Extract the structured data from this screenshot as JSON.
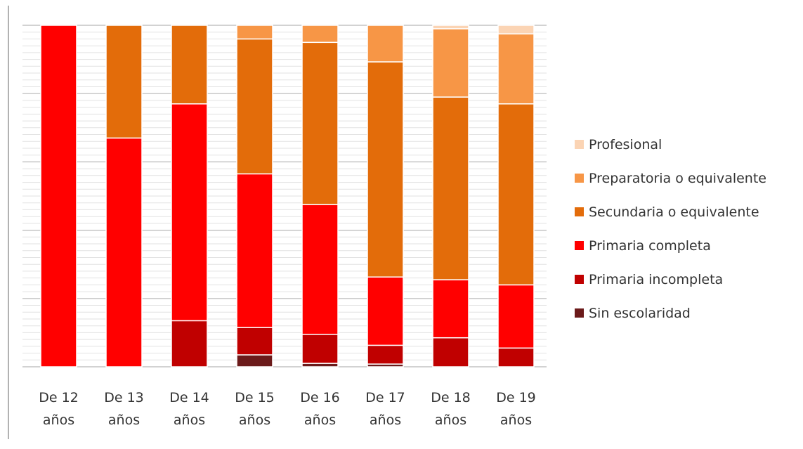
{
  "chart_data": {
    "type": "bar",
    "stacked": true,
    "normalized": true,
    "categories": [
      [
        "De 12",
        "años"
      ],
      [
        "De 13",
        "años"
      ],
      [
        "De 14",
        "años"
      ],
      [
        "De 15",
        "años"
      ],
      [
        "De 16",
        "años"
      ],
      [
        "De 17",
        "años"
      ],
      [
        "De 18",
        "años"
      ],
      [
        "De 19",
        "años"
      ]
    ],
    "series": [
      {
        "name": "Sin escolaridad",
        "color": "#6b1a1a",
        "values": [
          0,
          0,
          0,
          3.5,
          1,
          0.8,
          0,
          0
        ]
      },
      {
        "name": "Primaria incompleta",
        "color": "#c00000",
        "values": [
          0,
          0,
          13.5,
          8,
          8.5,
          5.5,
          8.5,
          5.5
        ]
      },
      {
        "name": "Primaria completa",
        "color": "#ff0000",
        "values": [
          100,
          67,
          63.5,
          45,
          38,
          20,
          17,
          18.5
        ]
      },
      {
        "name": "Secundaria o equivalente",
        "color": "#e36c0a",
        "values": [
          0,
          33,
          23,
          39.5,
          47.5,
          63,
          53.5,
          53
        ]
      },
      {
        "name": "Preparatoria o equivalente",
        "color": "#f79646",
        "values": [
          0,
          0,
          0,
          4,
          5,
          10.7,
          20,
          20.5
        ]
      },
      {
        "name": "Profesional",
        "color": "#fbd4b4",
        "values": [
          0,
          0,
          0,
          0,
          0,
          0,
          1,
          2.5
        ]
      }
    ],
    "ylim": [
      0,
      100
    ],
    "grid": true,
    "legend": "right"
  }
}
